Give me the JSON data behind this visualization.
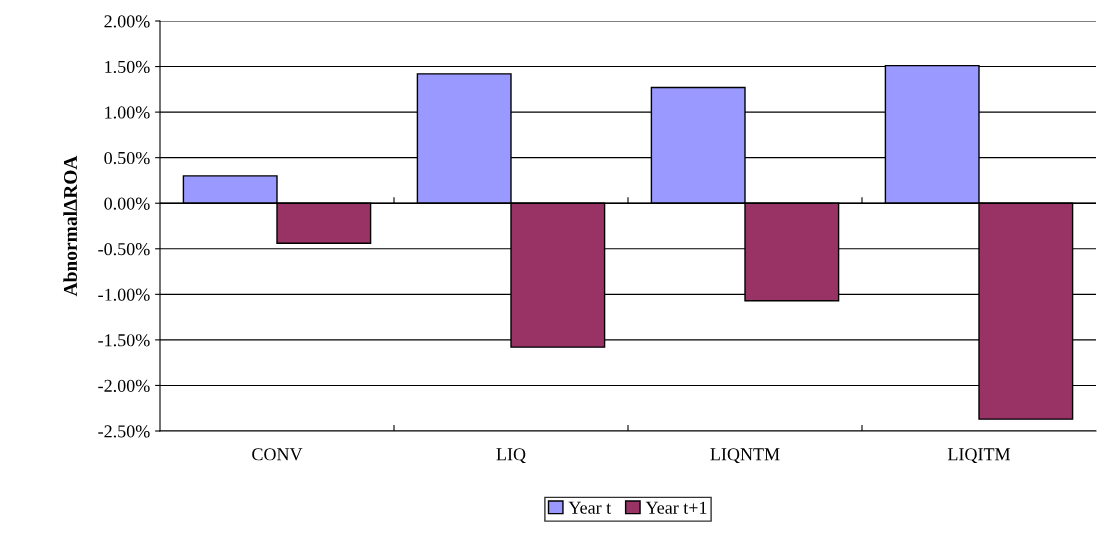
{
  "chart_data": {
    "type": "bar",
    "ylabel": "AbnormalΔROA",
    "categories": [
      "CONV",
      "LIQ",
      "LIQNTM",
      "LIQITM"
    ],
    "series": [
      {
        "name": "Year t",
        "color": "#9999ff",
        "values": [
          0.3,
          1.42,
          1.27,
          1.51
        ]
      },
      {
        "name": "Year t+1",
        "color": "#993366",
        "values": [
          -0.44,
          -1.58,
          -1.07,
          -2.37
        ]
      }
    ],
    "ylim": [
      -2.5,
      2.0
    ],
    "yticks": [
      {
        "value": -2.5,
        "label": "-2.50%"
      },
      {
        "value": -2.0,
        "label": "-2.00%"
      },
      {
        "value": -1.5,
        "label": "-1.50%"
      },
      {
        "value": -1.0,
        "label": "-1.00%"
      },
      {
        "value": -0.5,
        "label": "-0.50%"
      },
      {
        "value": 0,
        "label": "0.00%"
      },
      {
        "value": 0.5,
        "label": "0.50%"
      },
      {
        "value": 1.0,
        "label": "1.00%"
      },
      {
        "value": 1.5,
        "label": "1.50%"
      },
      {
        "value": 2.0,
        "label": "2.00%"
      }
    ],
    "grid": "y",
    "legend": "bottom"
  }
}
